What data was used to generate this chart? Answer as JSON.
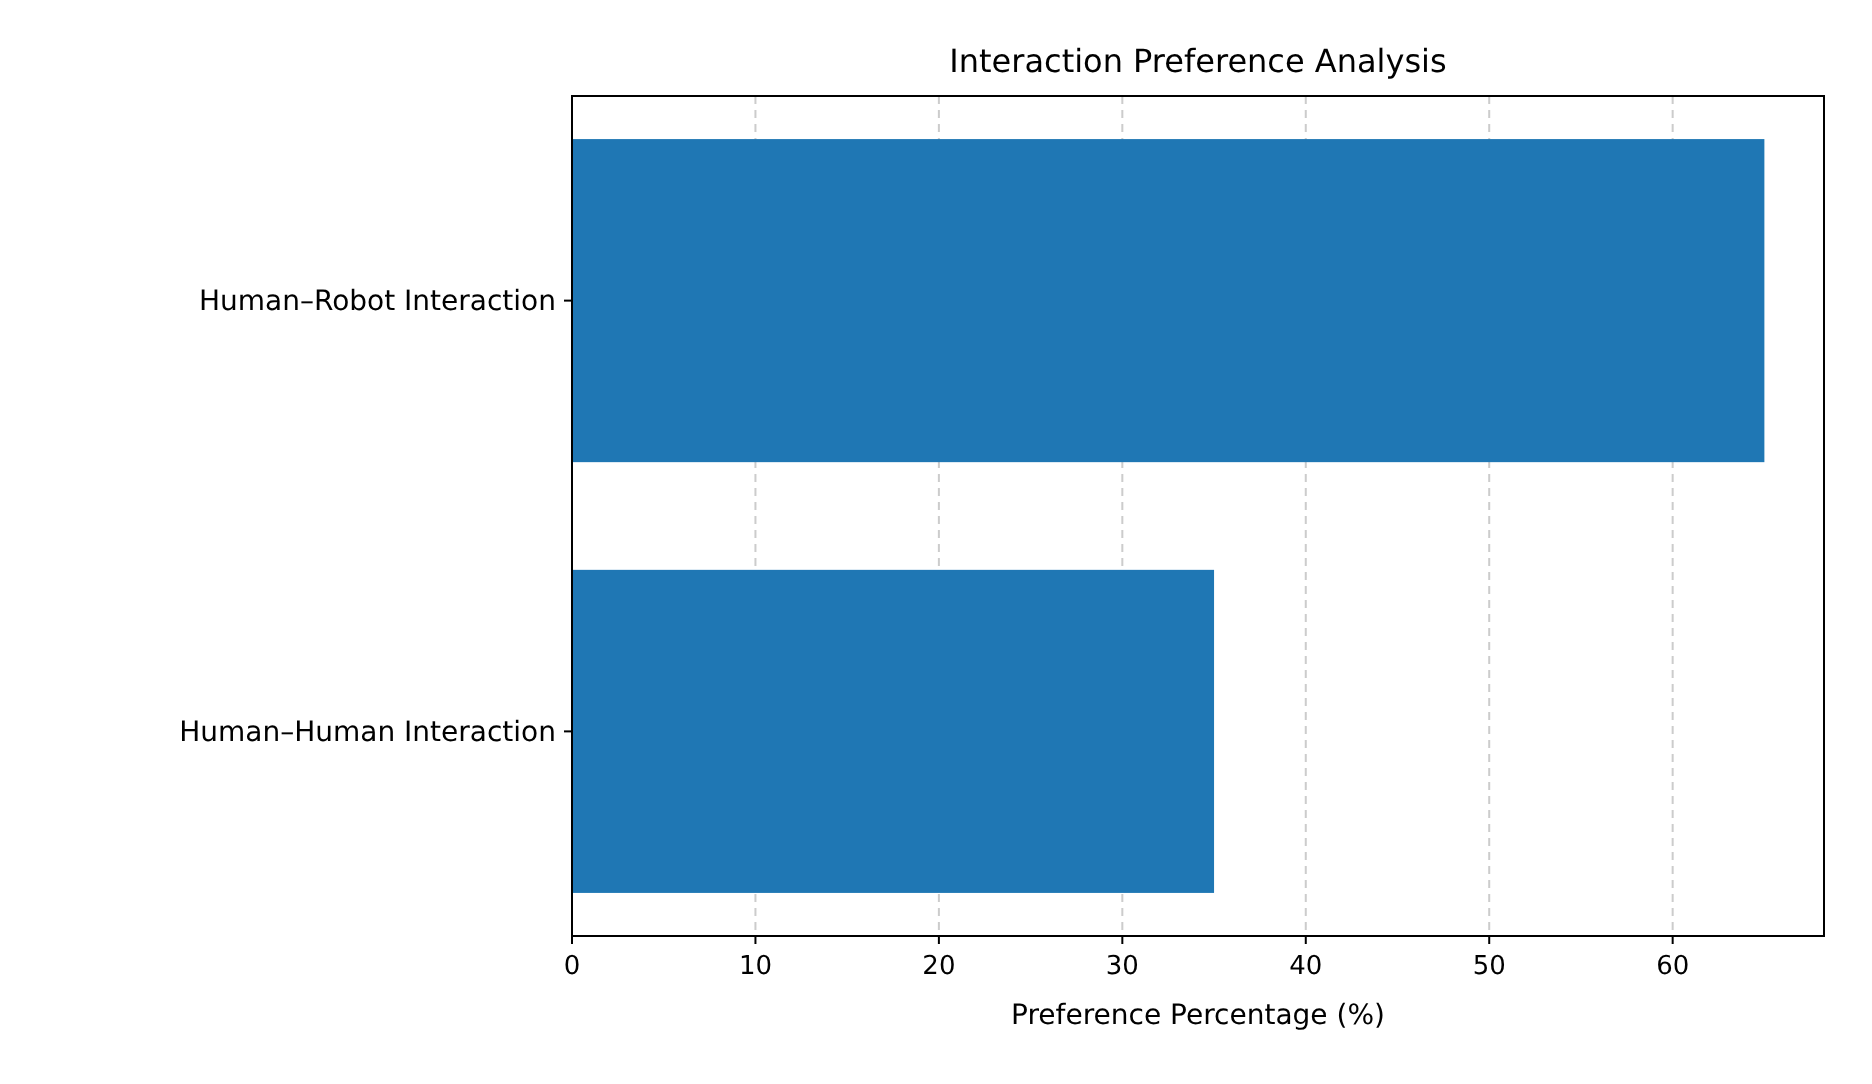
{
  "chart_data": {
    "type": "bar",
    "orientation": "horizontal",
    "title": "Interaction Preference Analysis",
    "xlabel": "Preference Percentage (%)",
    "categories": [
      "Human–Robot Interaction",
      "Human–Human Interaction"
    ],
    "values": [
      65,
      35
    ],
    "color": "#1f77b4",
    "xlim": [
      0,
      68.25
    ],
    "xticks": [
      0,
      10,
      20,
      30,
      40,
      50,
      60
    ],
    "grid": "x"
  }
}
